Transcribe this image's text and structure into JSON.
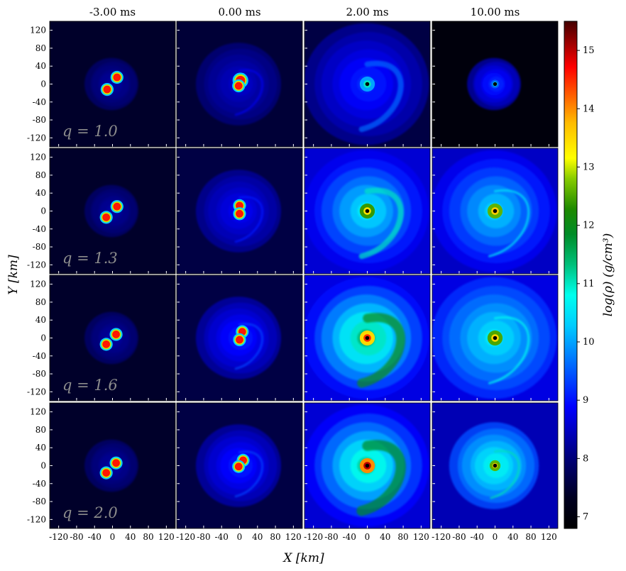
{
  "chart_data": {
    "type": "heatmap",
    "description_kind": "grid of density snapshots",
    "column_titles": [
      "-3.00 ms",
      "0.00 ms",
      "2.00 ms",
      "10.00 ms"
    ],
    "row_labels": [
      "q = 1.0",
      "q = 1.3",
      "q = 1.6",
      "q = 2.0"
    ],
    "xlabel": "X [km]",
    "ylabel": "Y [km]",
    "x_ticks": [
      "-120",
      "-80",
      "-40",
      "0",
      "40",
      "80",
      "120"
    ],
    "y_ticks": [
      "120",
      "80",
      "40",
      "0",
      "-40",
      "-80",
      "-120"
    ],
    "xlim": [
      -140,
      140
    ],
    "ylim": [
      -140,
      140
    ],
    "colorbar": {
      "label": "log(ρ) (g/cm³)",
      "ticks": [
        "7",
        "8",
        "9",
        "10",
        "11",
        "12",
        "13",
        "14",
        "15"
      ],
      "range": [
        6.8,
        15.5
      ],
      "colormap": "jet-like"
    },
    "panels": [
      [
        {
          "disk_extent": 60,
          "disk_level": 7.9,
          "core_level": 8.3,
          "blobs": [
            [
              10,
              15,
              9
            ],
            [
              -12,
              -12,
              9
            ]
          ],
          "halo_level": 7.4,
          "ring_level": 0,
          "arm_strength": 0.0,
          "black_hole": false
        },
        {
          "disk_extent": 95,
          "disk_level": 8.0,
          "core_level": 8.6,
          "blobs": [
            [
              2,
              8,
              11
            ],
            [
              -2,
              -4,
              9
            ]
          ],
          "halo_level": 7.5,
          "ring_level": 0,
          "arm_strength": 0.2,
          "black_hole": false
        },
        {
          "disk_extent": 140,
          "disk_level": 8.2,
          "core_level": 9.2,
          "blobs": [],
          "halo_level": 7.6,
          "ring_level": 10.0,
          "arm_strength": 0.5,
          "black_hole": true
        },
        {
          "disk_extent": 60,
          "disk_level": 8.3,
          "core_level": 9.3,
          "blobs": [],
          "halo_level": 7.0,
          "ring_level": 9.5,
          "arm_strength": 0.0,
          "black_hole": true
        }
      ],
      [
        {
          "disk_extent": 60,
          "disk_level": 7.9,
          "core_level": 8.3,
          "blobs": [
            [
              10,
              10,
              9
            ],
            [
              -14,
              -14,
              9
            ]
          ],
          "halo_level": 7.4,
          "ring_level": 0,
          "arm_strength": 0.0,
          "black_hole": false
        },
        {
          "disk_extent": 95,
          "disk_level": 8.2,
          "core_level": 8.9,
          "blobs": [
            [
              0,
              12,
              9
            ],
            [
              0,
              -6,
              9
            ]
          ],
          "halo_level": 7.6,
          "ring_level": 0,
          "arm_strength": 0.2,
          "black_hole": false
        },
        {
          "disk_extent": 140,
          "disk_level": 8.8,
          "core_level": 10.6,
          "blobs": [],
          "halo_level": 8.6,
          "ring_level": 12.4,
          "arm_strength": 0.5,
          "black_hole": true
        },
        {
          "disk_extent": 140,
          "disk_level": 8.8,
          "core_level": 10.4,
          "blobs": [],
          "halo_level": 8.5,
          "ring_level": 12.6,
          "arm_strength": 0.2,
          "black_hole": true
        }
      ],
      [
        {
          "disk_extent": 60,
          "disk_level": 7.9,
          "core_level": 8.3,
          "blobs": [
            [
              8,
              8,
              9
            ],
            [
              -14,
              -14,
              9
            ]
          ],
          "halo_level": 7.4,
          "ring_level": 0,
          "arm_strength": 0.0,
          "black_hole": false
        },
        {
          "disk_extent": 95,
          "disk_level": 8.3,
          "core_level": 9.2,
          "blobs": [
            [
              6,
              14,
              9
            ],
            [
              0,
              -4,
              9
            ]
          ],
          "halo_level": 7.6,
          "ring_level": 0,
          "arm_strength": 0.2,
          "black_hole": false
        },
        {
          "disk_extent": 140,
          "disk_level": 9.0,
          "core_level": 11.4,
          "blobs": [],
          "halo_level": 8.7,
          "ring_level": 13.5,
          "arm_strength": 0.8,
          "black_hole": true
        },
        {
          "disk_extent": 140,
          "disk_level": 9.2,
          "core_level": 10.6,
          "blobs": [],
          "halo_level": 8.7,
          "ring_level": 12.5,
          "arm_strength": 0.2,
          "black_hole": true
        }
      ],
      [
        {
          "disk_extent": 60,
          "disk_level": 7.9,
          "core_level": 8.3,
          "blobs": [
            [
              8,
              6,
              9
            ],
            [
              -14,
              -16,
              9
            ]
          ],
          "halo_level": 7.4,
          "ring_level": 0,
          "arm_strength": 0.0,
          "black_hole": false
        },
        {
          "disk_extent": 95,
          "disk_level": 8.3,
          "core_level": 9.2,
          "blobs": [
            [
              8,
              12,
              9
            ],
            [
              -2,
              -2,
              9
            ]
          ],
          "halo_level": 7.6,
          "ring_level": 0,
          "arm_strength": 0.2,
          "black_hole": false
        },
        {
          "disk_extent": 140,
          "disk_level": 8.9,
          "core_level": 11.2,
          "blobs": [],
          "halo_level": 8.6,
          "ring_level": 14.0,
          "arm_strength": 0.9,
          "black_hole": true
        },
        {
          "disk_extent": 100,
          "disk_level": 9.4,
          "core_level": 10.9,
          "blobs": [],
          "halo_level": 8.4,
          "ring_level": 12.6,
          "arm_strength": 0.2,
          "black_hole": true
        }
      ]
    ]
  }
}
